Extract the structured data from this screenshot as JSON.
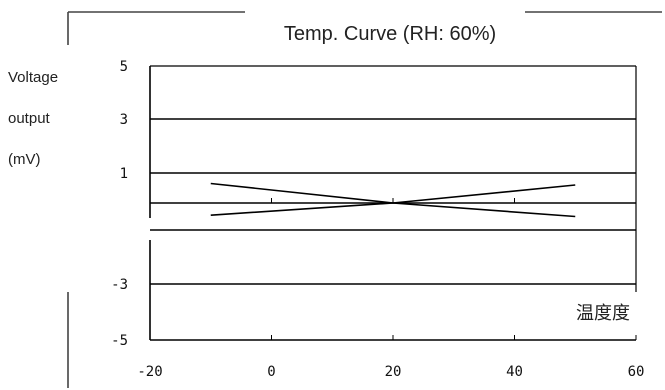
{
  "chart_data": {
    "type": "line",
    "title": "Temp. Curve (RH: 60%)",
    "ylabel_lines": [
      "Voltage",
      "output",
      "(mV)"
    ],
    "xlabel": "温度度",
    "xlim": [
      -20,
      60
    ],
    "ylim": [
      -5,
      5
    ],
    "xticks": [
      "-20",
      "0",
      "20",
      "40",
      "60"
    ],
    "yticks": [
      "5",
      "3",
      "1",
      "-3",
      "-5"
    ],
    "grid_y": [
      3,
      1,
      0,
      -1,
      -3
    ],
    "series": [
      {
        "x": [
          -10,
          20,
          50
        ],
        "y": [
          0.65,
          0.0,
          -0.5
        ]
      },
      {
        "x": [
          -10,
          20,
          50
        ],
        "y": [
          -0.45,
          0.0,
          0.6
        ]
      }
    ]
  }
}
